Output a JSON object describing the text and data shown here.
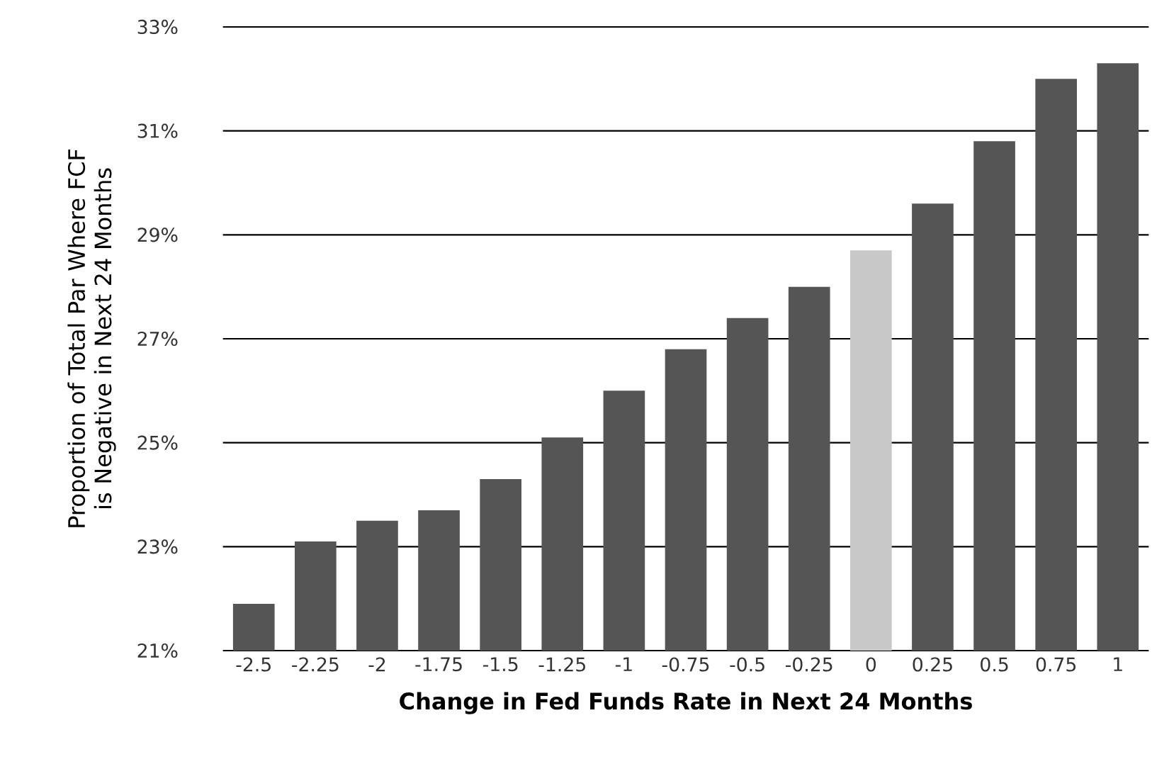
{
  "chart_data": {
    "type": "bar",
    "xlabel": "Change in Fed Funds Rate in Next 24 Months",
    "ylabel": "Proportion of Total Par Where FCF is Negative in Next 24 Months",
    "categories": [
      "-2.5",
      "-2.25",
      "-2",
      "-1.75",
      "-1.5",
      "-1.25",
      "-1",
      "-0.75",
      "-0.5",
      "-0.25",
      "0",
      "0.25",
      "0.5",
      "0.75",
      "1"
    ],
    "values": [
      21.9,
      23.1,
      23.5,
      23.7,
      24.3,
      25.1,
      26.0,
      26.8,
      27.4,
      28.0,
      28.7,
      29.6,
      30.8,
      32.0,
      32.3
    ],
    "colors": [
      "#555555",
      "#555555",
      "#555555",
      "#555555",
      "#555555",
      "#555555",
      "#555555",
      "#555555",
      "#555555",
      "#555555",
      "#c8c8c8",
      "#555555",
      "#555555",
      "#555555",
      "#555555"
    ],
    "ylim": [
      21,
      33
    ],
    "yticks": [
      {
        "value": 21,
        "label": "21%"
      },
      {
        "value": 23,
        "label": "23%"
      },
      {
        "value": 25,
        "label": "25%"
      },
      {
        "value": 27,
        "label": "27%"
      },
      {
        "value": 29,
        "label": "29%"
      },
      {
        "value": 31,
        "label": "31%"
      },
      {
        "value": 33,
        "label": "33%"
      }
    ],
    "grid": "y"
  }
}
